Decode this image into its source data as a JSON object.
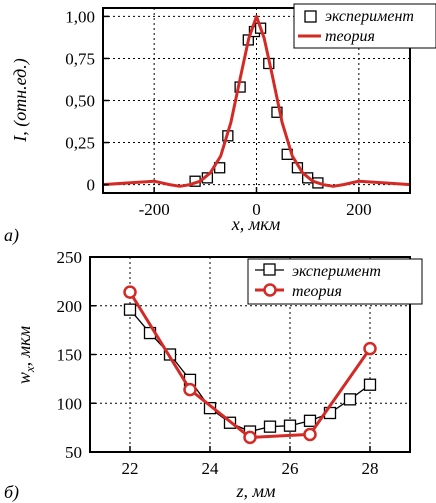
{
  "chart_data": [
    {
      "type": "line",
      "panel_label": "a)",
      "xlabel": "x, мкм",
      "ylabel": "I, (отн.ед.)",
      "xlim": [
        -300,
        300
      ],
      "ylim": [
        -0.05,
        1.05
      ],
      "xticks": [
        "-200",
        "0",
        "200"
      ],
      "xtick_values": [
        -200,
        0,
        200
      ],
      "yticks": [
        "0",
        "0,25",
        "0,50",
        "0,75",
        "1,00"
      ],
      "ytick_values": [
        0,
        0.25,
        0.5,
        0.75,
        1.0
      ],
      "grid": true,
      "legend_position": "top-right",
      "series": [
        {
          "name": "эксперимент",
          "marker": "square",
          "color": "#000000",
          "x": [
            -120,
            -96,
            -72,
            -56,
            -32,
            -16,
            -4,
            8,
            24,
            40,
            60,
            80,
            100,
            120
          ],
          "y": [
            0.02,
            0.04,
            0.1,
            0.29,
            0.58,
            0.86,
            0.91,
            0.93,
            0.72,
            0.43,
            0.18,
            0.1,
            0.04,
            0.01
          ]
        },
        {
          "name": "теория",
          "color": "#d42a26",
          "x": [
            -300,
            -250,
            -200,
            -170,
            -150,
            -130,
            -110,
            -90,
            -70,
            -50,
            -30,
            -15,
            0,
            15,
            30,
            50,
            70,
            90,
            110,
            130,
            150,
            170,
            200,
            250,
            300
          ],
          "y": [
            0.0,
            0.01,
            0.02,
            0.0,
            -0.01,
            0.0,
            0.02,
            0.07,
            0.17,
            0.37,
            0.66,
            0.87,
            1.0,
            0.87,
            0.66,
            0.37,
            0.17,
            0.07,
            0.02,
            0.0,
            -0.01,
            0.0,
            0.02,
            0.01,
            0.0
          ]
        }
      ]
    },
    {
      "type": "line",
      "panel_label": "б)",
      "xlabel": "z, мм",
      "ylabel": "wx, мкм",
      "ylabel_main": "w",
      "ylabel_sub": "x",
      "ylabel_rest": ", мкм",
      "xlim": [
        21,
        29
      ],
      "ylim": [
        50,
        250
      ],
      "xticks": [
        "22",
        "24",
        "26",
        "28"
      ],
      "xtick_values": [
        22,
        24,
        26,
        28
      ],
      "yticks": [
        "50",
        "100",
        "150",
        "200",
        "250"
      ],
      "ytick_values": [
        50,
        100,
        150,
        200,
        250
      ],
      "grid": true,
      "legend_position": "top-right",
      "series": [
        {
          "name": "эксперимент",
          "marker": "square",
          "color": "#000000",
          "x": [
            22,
            22.5,
            23,
            23.5,
            24,
            24.5,
            25,
            25.5,
            26,
            26.5,
            27,
            27.5,
            28
          ],
          "y": [
            196,
            172,
            150,
            124,
            95,
            80,
            71,
            76,
            77,
            82,
            90,
            104,
            119
          ]
        },
        {
          "name": "теория",
          "marker": "circle",
          "color": "#d42a26",
          "x": [
            22,
            23.5,
            25,
            26.5,
            28
          ],
          "y": [
            214,
            114,
            65,
            68,
            156
          ]
        }
      ]
    }
  ]
}
